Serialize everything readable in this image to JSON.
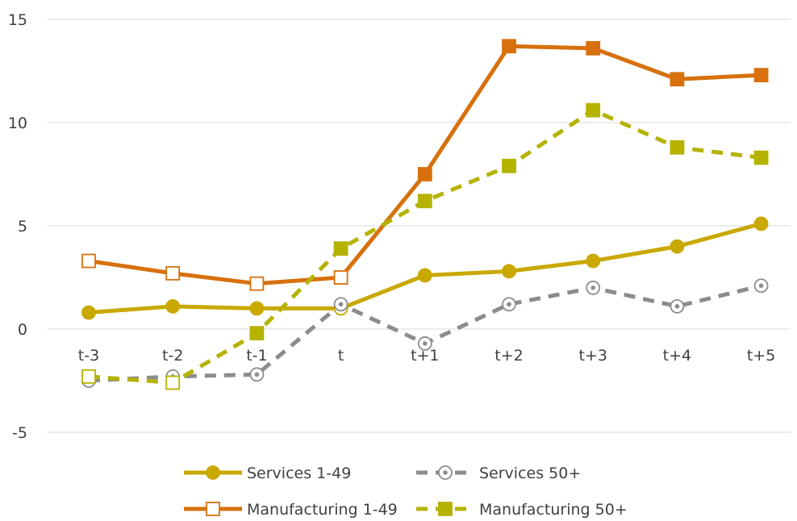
{
  "chart_data": {
    "type": "line",
    "title": "",
    "xlabel": "",
    "ylabel": "",
    "categories": [
      "t-3",
      "t-2",
      "t-1",
      "t",
      "t+1",
      "t+2",
      "t+3",
      "t+4",
      "t+5"
    ],
    "ylim": [
      -5,
      15
    ],
    "yticks": [
      -5,
      0,
      5,
      10,
      15
    ],
    "grid": true,
    "legend_position": "bottom",
    "series": [
      {
        "name": "Services 1-49",
        "values": [
          0.8,
          1.1,
          1.0,
          1.0,
          2.6,
          2.8,
          3.3,
          4.0,
          5.1
        ],
        "color": "#c9a800",
        "dash": "solid",
        "marker": "circle",
        "filled": [
          true,
          true,
          true,
          false,
          true,
          true,
          true,
          true,
          true
        ]
      },
      {
        "name": "Services 50+",
        "values": [
          -2.5,
          -2.3,
          -2.2,
          1.2,
          -0.7,
          1.2,
          2.0,
          1.1,
          2.1
        ],
        "color": "#8c8c8c",
        "dash": "dashed",
        "marker": "circle-open-dot",
        "filled": [
          false,
          false,
          false,
          false,
          false,
          false,
          false,
          false,
          false
        ]
      },
      {
        "name": "Manufacturing 1-49",
        "values": [
          3.3,
          2.7,
          2.2,
          2.5,
          7.5,
          13.7,
          13.6,
          12.1,
          12.3
        ],
        "color": "#d7700d",
        "dash": "solid",
        "marker": "square",
        "filled": [
          false,
          false,
          false,
          false,
          true,
          true,
          true,
          true,
          true
        ]
      },
      {
        "name": "Manufacturing 50+",
        "values": [
          -2.3,
          -2.6,
          -0.2,
          3.9,
          6.2,
          7.9,
          10.6,
          8.8,
          8.3
        ],
        "color": "#b5b300",
        "dash": "dashed",
        "marker": "square",
        "filled": [
          false,
          false,
          true,
          true,
          true,
          true,
          true,
          true,
          true
        ]
      }
    ]
  }
}
